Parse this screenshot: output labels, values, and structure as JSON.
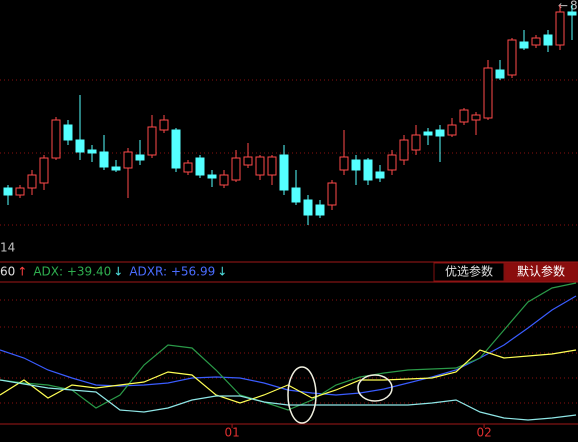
{
  "corner_label": "8",
  "left_label": "14",
  "indicator_labels": [
    {
      "text": "60",
      "color": "#e0e0e0"
    },
    {
      "text": "↑",
      "color": "#ff4040"
    },
    {
      "text": "ADX: +39.40",
      "color": "#2fae4f"
    },
    {
      "text": "↓",
      "color": "#4fe0e0"
    },
    {
      "text": "ADXR: +56.99",
      "color": "#4a6cff"
    },
    {
      "text": "↓",
      "color": "#4fe0e0"
    }
  ],
  "buttons": [
    "优选参数",
    "默认参数"
  ],
  "chart_data": [
    {
      "type": "candlestick",
      "up_color": "#ff4a4a",
      "down_color": "#54ffff",
      "ylim": [
        0,
        250
      ],
      "open": [
        62,
        55,
        62,
        67,
        92,
        125,
        110,
        100,
        98,
        83,
        82,
        95,
        95,
        120,
        120,
        78,
        92,
        75,
        65,
        70,
        85,
        75,
        75,
        95,
        62,
        50,
        45,
        45,
        80,
        90,
        90,
        78,
        80,
        90,
        100,
        118,
        120,
        115,
        128,
        130,
        132,
        180,
        175,
        208,
        205,
        215,
        205,
        238
      ],
      "close": [
        55,
        62,
        75,
        92,
        130,
        110,
        98,
        97,
        83,
        80,
        98,
        90,
        123,
        130,
        82,
        87,
        75,
        72,
        75,
        92,
        93,
        93,
        93,
        60,
        48,
        35,
        35,
        67,
        93,
        80,
        70,
        72,
        95,
        110,
        115,
        115,
        114,
        125,
        140,
        135,
        182,
        172,
        210,
        202,
        212,
        205,
        238,
        235
      ],
      "high": [
        65,
        65,
        80,
        95,
        133,
        130,
        155,
        105,
        115,
        90,
        102,
        110,
        135,
        135,
        122,
        90,
        95,
        80,
        80,
        100,
        107,
        95,
        95,
        105,
        80,
        55,
        50,
        70,
        120,
        95,
        92,
        85,
        100,
        115,
        125,
        122,
        125,
        132,
        142,
        138,
        190,
        190,
        212,
        220,
        215,
        220,
        245,
        245
      ],
      "low": [
        45,
        52,
        55,
        60,
        90,
        105,
        90,
        88,
        80,
        78,
        52,
        85,
        92,
        117,
        78,
        75,
        72,
        63,
        62,
        68,
        82,
        70,
        65,
        55,
        45,
        25,
        32,
        40,
        75,
        65,
        65,
        68,
        75,
        85,
        95,
        105,
        88,
        113,
        125,
        115,
        130,
        170,
        172,
        200,
        202,
        198,
        200,
        210
      ]
    },
    {
      "type": "line",
      "ylim": [
        0,
        142
      ],
      "xlim": [
        0,
        24
      ],
      "x": [
        0,
        1,
        2,
        3,
        4,
        5,
        6,
        7,
        8,
        9,
        10,
        11,
        12,
        13,
        14,
        15,
        16,
        17,
        18,
        19,
        20,
        21,
        22,
        23,
        24
      ],
      "xticks": [
        {
          "value": 9.67,
          "label": "01"
        },
        {
          "value": 20.17,
          "label": "02"
        }
      ],
      "series": [
        {
          "color": "#3a5cff",
          "values": [
            75,
            67,
            55,
            47,
            40,
            39,
            40,
            42,
            47,
            48,
            47,
            42,
            35,
            32,
            30,
            32,
            36,
            42,
            48,
            55,
            67,
            80,
            97,
            115,
            129
          ]
        },
        {
          "color": "#2a9a48",
          "values": [
            45,
            42,
            40,
            35,
            17,
            30,
            60,
            80,
            77,
            55,
            30,
            23,
            15,
            25,
            40,
            48,
            52,
            55,
            56,
            57,
            67,
            95,
            123,
            137,
            142
          ]
        },
        {
          "color": "#ffff55",
          "values": [
            30,
            45,
            27,
            40,
            37,
            40,
            43,
            53,
            50,
            30,
            22,
            30,
            40,
            27,
            35,
            45,
            45,
            46,
            47,
            53,
            75,
            67,
            69,
            71,
            75
          ]
        },
        {
          "color": "#8fe6e6",
          "values": [
            45,
            41,
            37,
            35,
            33,
            15,
            13,
            17,
            25,
            29,
            29,
            23,
            20,
            20,
            20,
            20,
            20,
            20,
            22,
            25,
            13,
            7,
            5,
            7,
            10
          ]
        }
      ]
    }
  ]
}
